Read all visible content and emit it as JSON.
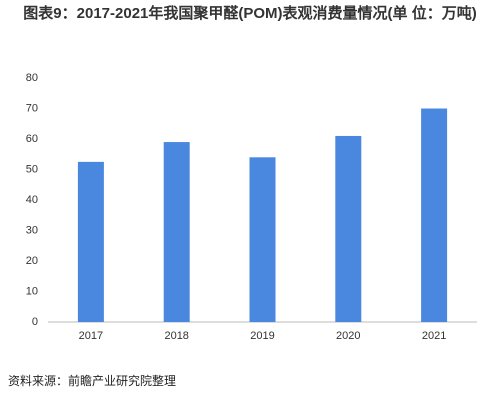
{
  "chart_data": {
    "type": "bar",
    "title": "图表9：2017-2021年我国聚甲醛(POM)表观消费量情况(单 位：万吨)",
    "categories": [
      "2017",
      "2018",
      "2019",
      "2020",
      "2021"
    ],
    "values": [
      52.5,
      59,
      54,
      61,
      70
    ],
    "color": "#4a88e0",
    "ylim": [
      0,
      80
    ],
    "yticks": [
      0,
      10,
      20,
      30,
      40,
      50,
      60,
      70,
      80
    ],
    "grid": false,
    "source": "资料来源：前瞻产业研究院整理"
  }
}
